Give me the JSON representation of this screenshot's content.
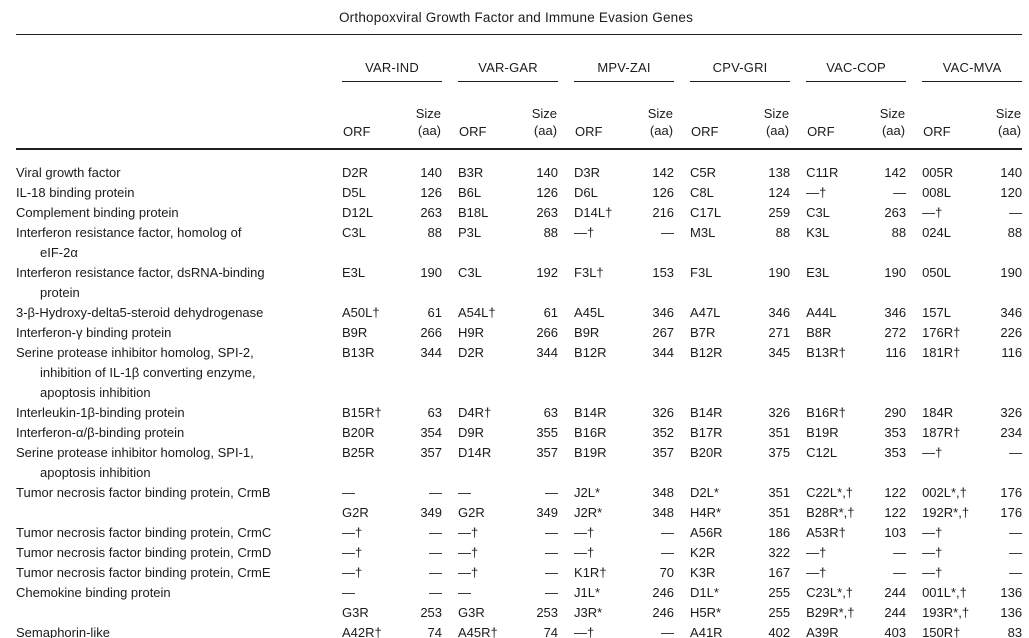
{
  "title": "Orthopoxviral Growth Factor and Immune Evasion Genes",
  "columns": {
    "groups": [
      "VAR-IND",
      "VAR-GAR",
      "MPV-ZAI",
      "CPV-GRI",
      "VAC-COP",
      "VAC-MVA"
    ],
    "sub": {
      "orf": "ORF",
      "size": "Size\n(aa)"
    }
  },
  "rows": [
    {
      "label": "Viral growth factor",
      "cells": [
        "D2R",
        "140",
        "B3R",
        "140",
        "D3R",
        "142",
        "C5R",
        "138",
        "C11R",
        "142",
        "005R",
        "140"
      ]
    },
    {
      "label": "IL-18 binding protein",
      "cells": [
        "D5L",
        "126",
        "B6L",
        "126",
        "D6L",
        "126",
        "C8L",
        "124",
        "—†",
        "—",
        "008L",
        "120"
      ]
    },
    {
      "label": "Complement binding protein",
      "cells": [
        "D12L",
        "263",
        "B18L",
        "263",
        "D14L†",
        "216",
        "C17L",
        "259",
        "C3L",
        "263",
        "—†",
        "—"
      ]
    },
    {
      "label": "Interferon resistance factor, homolog of\neIF-2α",
      "cells": [
        "C3L",
        "88",
        "P3L",
        "88",
        "—†",
        "—",
        "M3L",
        "88",
        "K3L",
        "88",
        "024L",
        "88"
      ]
    },
    {
      "label": "Interferon resistance factor, dsRNA-binding\nprotein",
      "cells": [
        "E3L",
        "190",
        "C3L",
        "192",
        "F3L†",
        "153",
        "F3L",
        "190",
        "E3L",
        "190",
        "050L",
        "190"
      ]
    },
    {
      "label": "3-β-Hydroxy-delta5-steroid dehydrogenase",
      "cells": [
        "A50L†",
        "61",
        "A54L†",
        "61",
        "A45L",
        "346",
        "A47L",
        "346",
        "A44L",
        "346",
        "157L",
        "346"
      ]
    },
    {
      "label": "Interferon-γ binding protein",
      "cells": [
        "B9R",
        "266",
        "H9R",
        "266",
        "B9R",
        "267",
        "B7R",
        "271",
        "B8R",
        "272",
        "176R†",
        "226"
      ]
    },
    {
      "label": "Serine protease inhibitor homolog, SPI-2,\ninhibition of IL-1β converting enzyme,\napoptosis inhibition",
      "cells": [
        "B13R",
        "344",
        "D2R",
        "344",
        "B12R",
        "344",
        "B12R",
        "345",
        "B13R†",
        "116",
        "181R†",
        "116"
      ]
    },
    {
      "label": "Interleukin-1β-binding protein",
      "cells": [
        "B15R†",
        "63",
        "D4R†",
        "63",
        "B14R",
        "326",
        "B14R",
        "326",
        "B16R†",
        "290",
        "184R",
        "326"
      ]
    },
    {
      "label": "Interferon-α/β-binding protein",
      "cells": [
        "B20R",
        "354",
        "D9R",
        "355",
        "B16R",
        "352",
        "B17R",
        "351",
        "B19R",
        "353",
        "187R†",
        "234"
      ]
    },
    {
      "label": "Serine protease inhibitor homolog, SPI-1,\napoptosis inhibition",
      "cells": [
        "B25R",
        "357",
        "D14R",
        "357",
        "B19R",
        "357",
        "B20R",
        "375",
        "C12L",
        "353",
        "—†",
        "—"
      ]
    },
    {
      "label": "Tumor necrosis factor binding protein, CrmB",
      "cells": [
        "—",
        "—",
        "—",
        "—",
        "J2L*",
        "348",
        "D2L*",
        "351",
        "C22L*,†",
        "122",
        "002L*,†",
        "176"
      ]
    },
    {
      "label": "",
      "cells": [
        "G2R",
        "349",
        "G2R",
        "349",
        "J2R*",
        "348",
        "H4R*",
        "351",
        "B28R*,†",
        "122",
        "192R*,†",
        "176"
      ]
    },
    {
      "label": "Tumor necrosis factor binding protein, CrmC",
      "cells": [
        "—†",
        "—",
        "—†",
        "—",
        "—†",
        "—",
        "A56R",
        "186",
        "A53R†",
        "103",
        "—†",
        "—"
      ]
    },
    {
      "label": "Tumor necrosis factor binding protein, CrmD",
      "cells": [
        "—†",
        "—",
        "—†",
        "—",
        "—†",
        "—",
        "K2R",
        "322",
        "—†",
        "—",
        "—†",
        "—"
      ]
    },
    {
      "label": "Tumor necrosis factor binding protein, CrmE",
      "cells": [
        "—†",
        "—",
        "—†",
        "—",
        "K1R†",
        "70",
        "K3R",
        "167",
        "—†",
        "—",
        "—†",
        "—"
      ]
    },
    {
      "label": "Chemokine binding protein",
      "cells": [
        "—",
        "—",
        "—",
        "—",
        "J1L*",
        "246",
        "D1L*",
        "255",
        "C23L*,†",
        "244",
        "001L*,†",
        "136"
      ]
    },
    {
      "label": "",
      "cells": [
        "G3R",
        "253",
        "G3R",
        "253",
        "J3R*",
        "246",
        "H5R*",
        "255",
        "B29R*,†",
        "244",
        "193R*,†",
        "136"
      ]
    },
    {
      "label": "Semaphorin-like",
      "cells": [
        "A42R†",
        "74",
        "A45R†",
        "74",
        "—†",
        "—",
        "A41R",
        "402",
        "A39R",
        "403",
        "150R†",
        "83"
      ]
    }
  ]
}
